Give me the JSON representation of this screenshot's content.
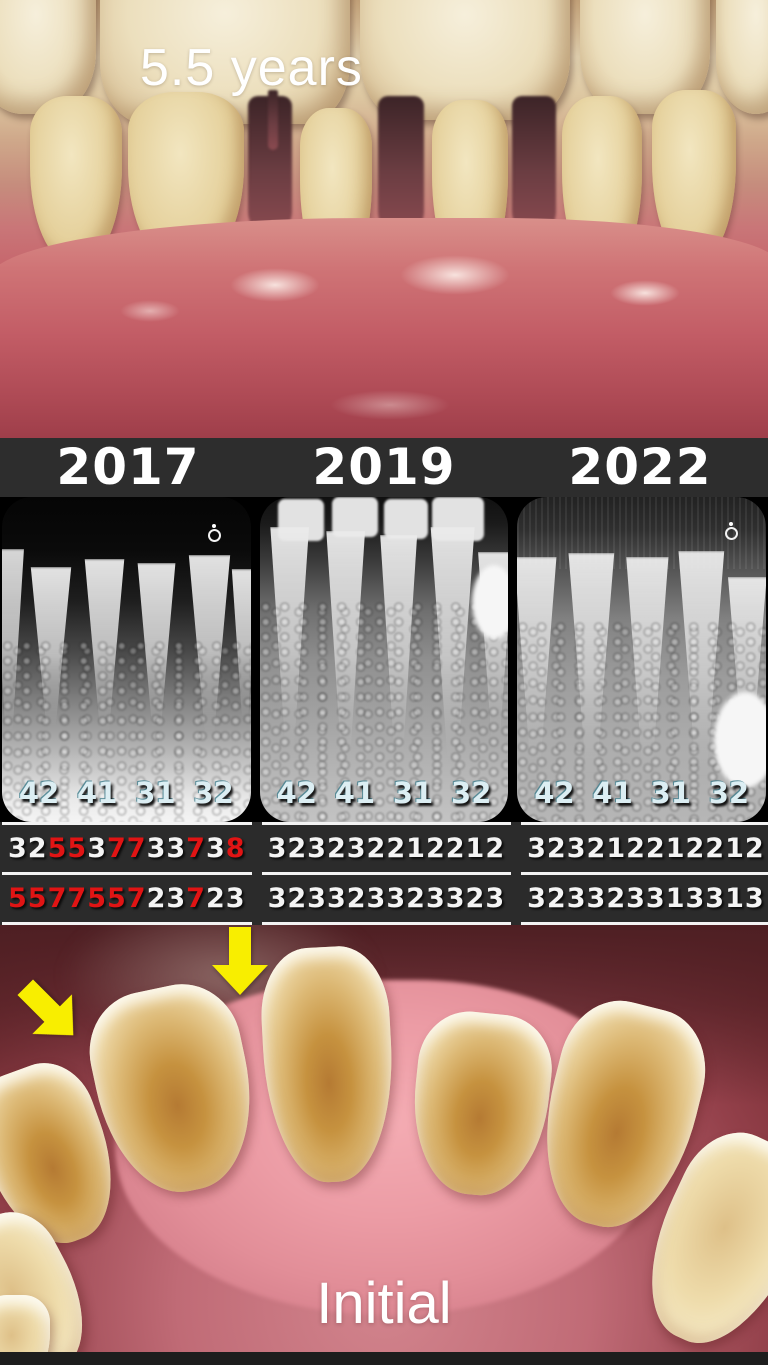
{
  "colors": {
    "probing_red": "#e11414",
    "probing_white": "#f4f4f4",
    "tooth_label_blue": "#dceef3",
    "arrow_yellow": "#f8ee00",
    "year_band_bg": "#2d2d2d",
    "table_bg": "#2b2b2b"
  },
  "icons": {
    "xray_orientation_marker": "circle-with-dot",
    "pointer_arrow": "yellow-down-arrow"
  },
  "top_photo": {
    "caption": "5.5 years"
  },
  "panels": [
    {
      "year": "2017",
      "tooth_labels": [
        "42",
        "41",
        "31",
        "32"
      ],
      "pd_row1": [
        "325",
        "537",
        "733",
        "738"
      ],
      "pd_row1_red": [
        "001",
        "101",
        "100",
        "101"
      ],
      "pd_row2": [
        "557",
        "755",
        "723",
        "723"
      ],
      "pd_row2_red": [
        "111",
        "111",
        "100",
        "100"
      ]
    },
    {
      "year": "2019",
      "tooth_labels": [
        "42",
        "41",
        "31",
        "32"
      ],
      "pd_row1": [
        "323",
        "232",
        "212",
        "212"
      ],
      "pd_row1_red": [
        "000",
        "000",
        "000",
        "000"
      ],
      "pd_row2": [
        "323",
        "323",
        "323",
        "323"
      ],
      "pd_row2_red": [
        "000",
        "000",
        "000",
        "000"
      ]
    },
    {
      "year": "2022",
      "tooth_labels": [
        "42",
        "41",
        "31",
        "32"
      ],
      "pd_row1": [
        "323",
        "212",
        "212",
        "212"
      ],
      "pd_row1_red": [
        "000",
        "000",
        "000",
        "000"
      ],
      "pd_row2": [
        "323",
        "323",
        "313",
        "313"
      ],
      "pd_row2_red": [
        "000",
        "000",
        "000",
        "000"
      ]
    }
  ],
  "bottom_photo": {
    "caption": "Initial"
  }
}
